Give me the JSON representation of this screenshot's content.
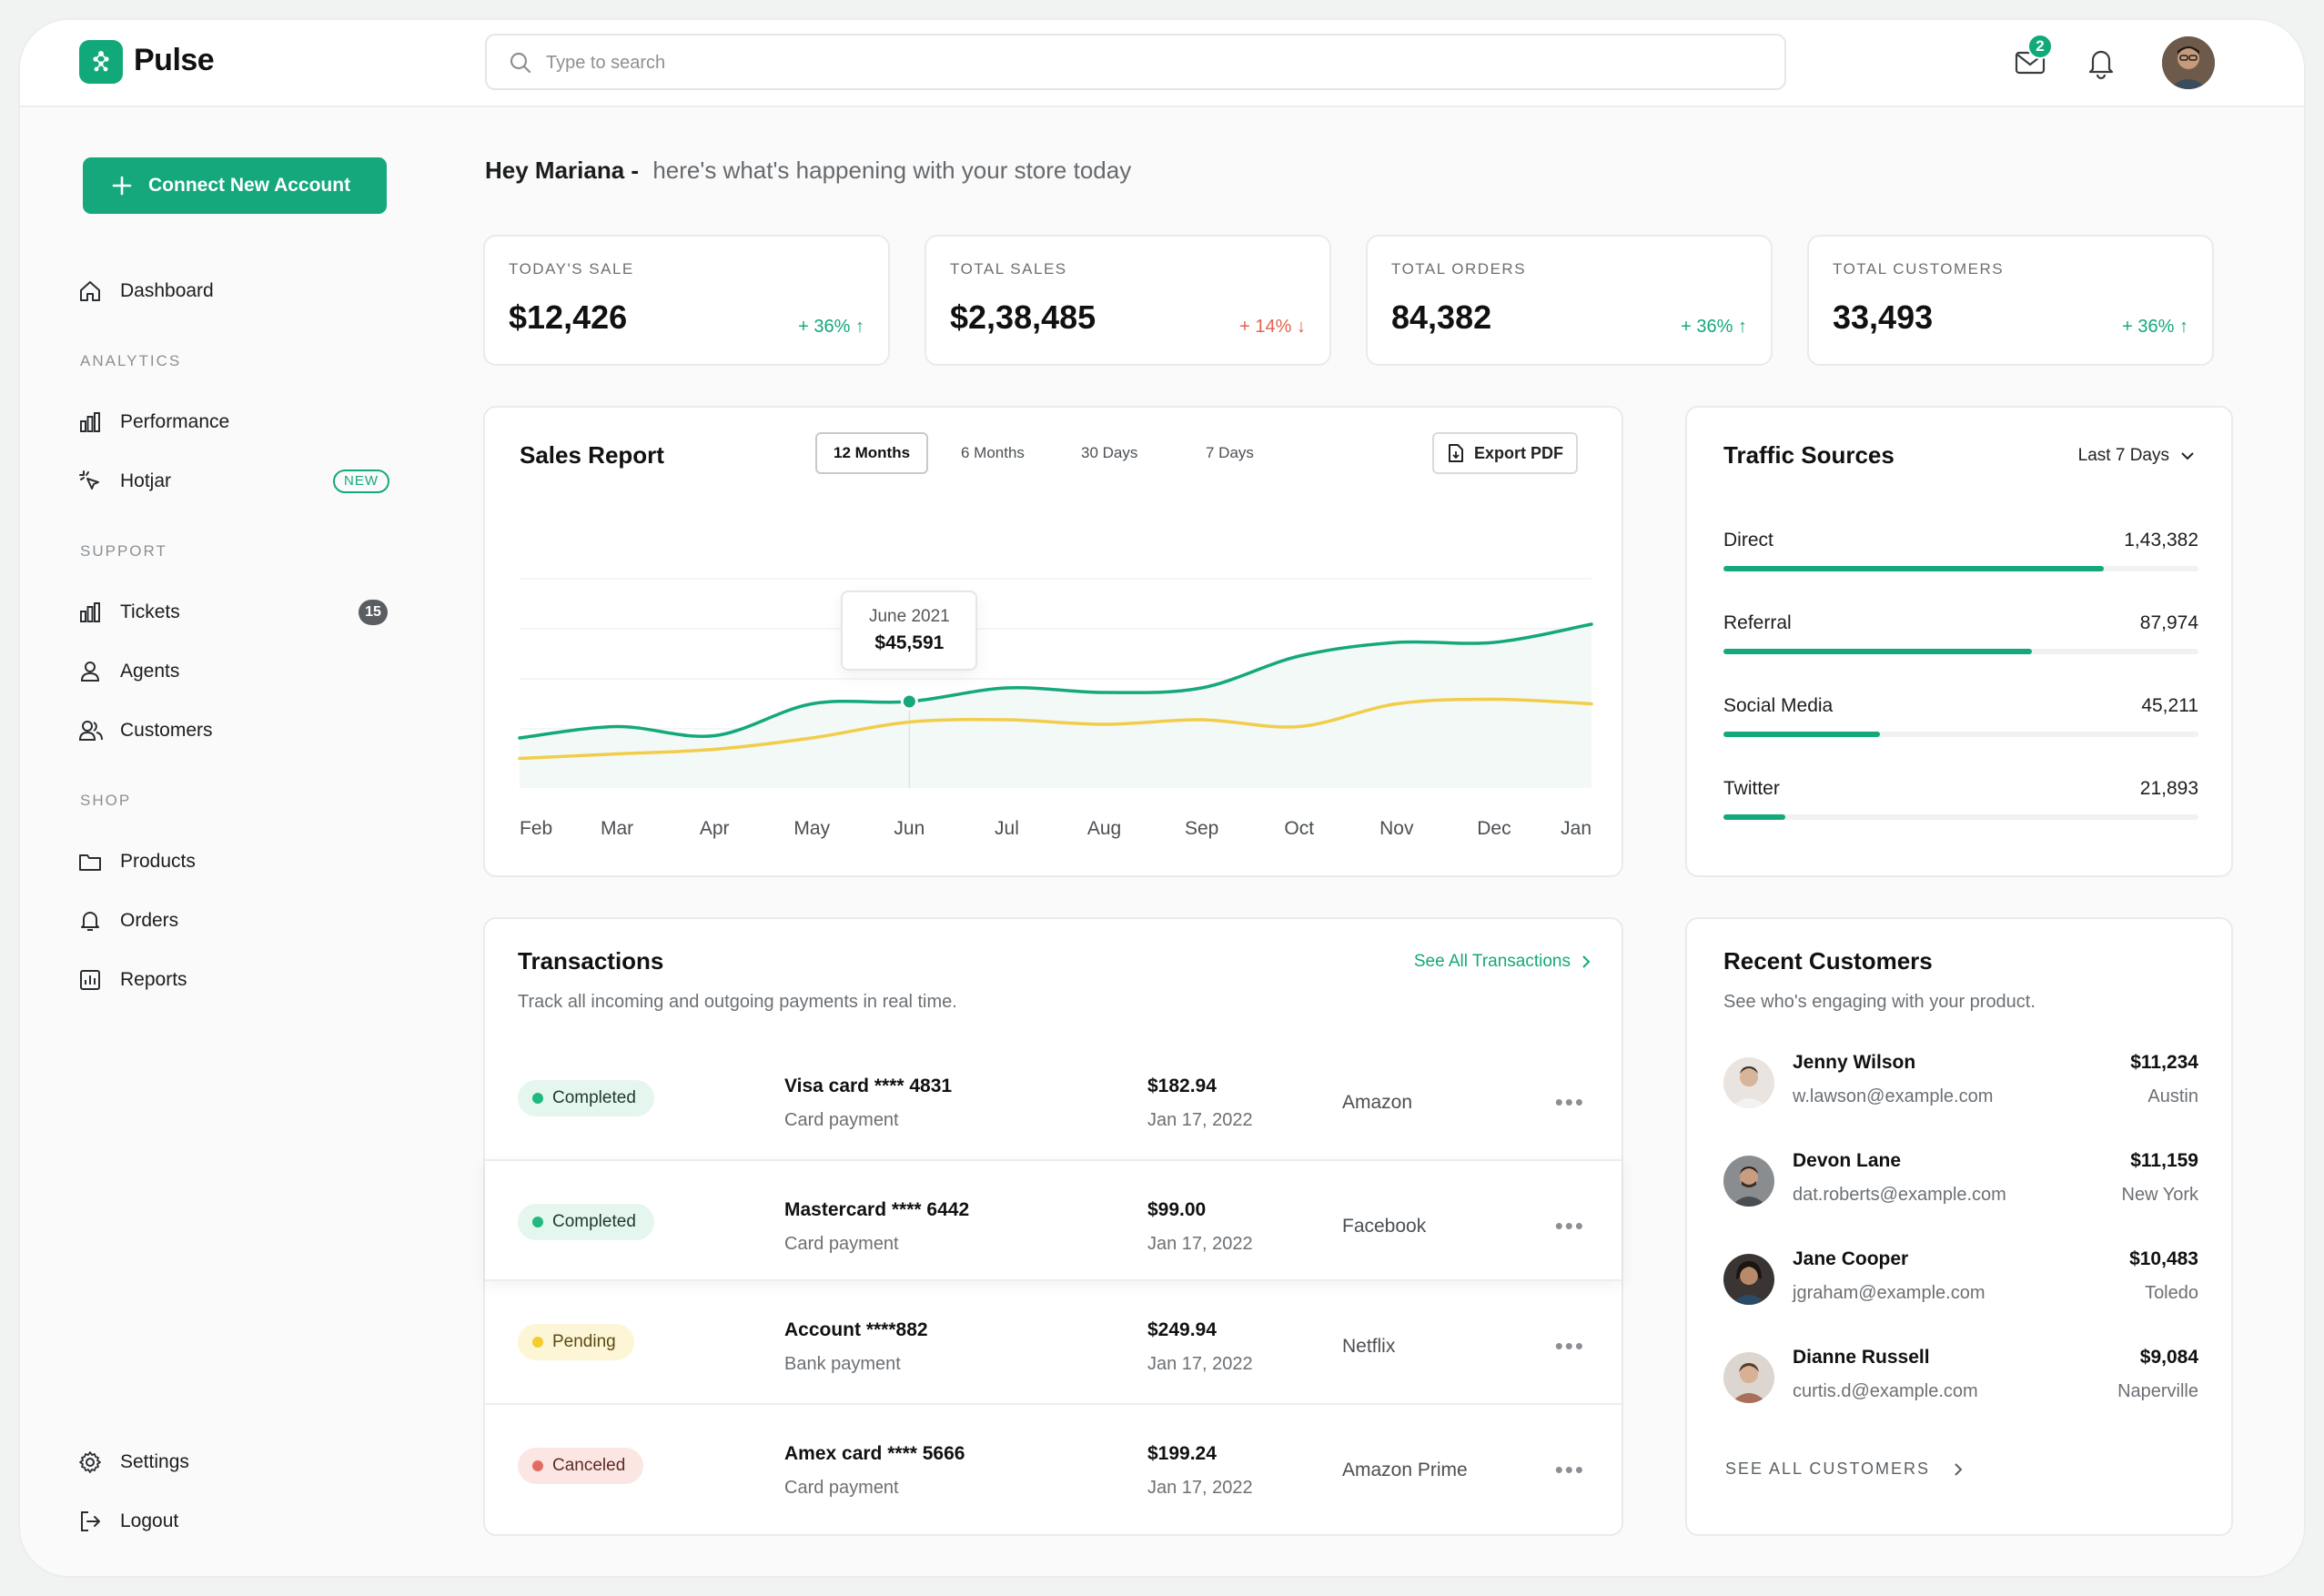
{
  "app": {
    "brand": "Pulse"
  },
  "search": {
    "placeholder": "Type to search"
  },
  "header": {
    "mail_badge": "2"
  },
  "sidebar": {
    "connect_label": "Connect New Account",
    "dashboard": "Dashboard",
    "sections": {
      "analytics": "ANALYTICS",
      "support": "SUPPORT",
      "shop": "SHOP"
    },
    "performance": "Performance",
    "hotjar": "Hotjar",
    "hotjar_badge": "NEW",
    "tickets": "Tickets",
    "tickets_count": "15",
    "agents": "Agents",
    "customers": "Customers",
    "products": "Products",
    "orders": "Orders",
    "reports": "Reports",
    "settings": "Settings",
    "logout": "Logout"
  },
  "greeting": {
    "name": "Hey Mariana -",
    "sub": "here's what's happening with your store today"
  },
  "stats": [
    {
      "label": "TODAY'S SALE",
      "value": "$12,426",
      "change": "+ 36% ↑",
      "trend": "up"
    },
    {
      "label": "TOTAL SALES",
      "value": "$2,38,485",
      "change": "+ 14% ↓",
      "trend": "down"
    },
    {
      "label": "TOTAL ORDERS",
      "value": "84,382",
      "change": "+ 36% ↑",
      "trend": "up"
    },
    {
      "label": "TOTAL CUSTOMERS",
      "value": "33,493",
      "change": "+ 36% ↑",
      "trend": "up"
    }
  ],
  "sales_report": {
    "title": "Sales Report",
    "tabs": [
      "12 Months",
      "6 Months",
      "30 Days",
      "7 Days"
    ],
    "active_tab": "12 Months",
    "export_label": "Export PDF",
    "tooltip": {
      "label": "June 2021",
      "value": "$45,591"
    }
  },
  "chart_data": {
    "type": "line",
    "title": "Sales Report",
    "categories": [
      "Feb",
      "Mar",
      "Apr",
      "May",
      "Jun",
      "Jul",
      "Aug",
      "Sep",
      "Oct",
      "Nov",
      "Dec",
      "Jan"
    ],
    "series": [
      {
        "color": "#14a87c",
        "values": [
          22,
          27,
          23,
          37,
          38,
          44,
          42,
          44,
          58,
          64,
          64,
          72
        ]
      },
      {
        "color": "#f2cd4a",
        "values": [
          13,
          15,
          17,
          22,
          29,
          30,
          28,
          30,
          27,
          37,
          39,
          37
        ]
      }
    ],
    "ylim": [
      0,
      100
    ],
    "highlight": {
      "category": "Jun",
      "label": "June 2021",
      "value": "$45,591"
    },
    "grid": true
  },
  "traffic": {
    "title": "Traffic Sources",
    "range": "Last 7 Days",
    "rows": [
      {
        "label": "Direct",
        "value": "1,43,382",
        "fraction": 0.8
      },
      {
        "label": "Referral",
        "value": "87,974",
        "fraction": 0.65
      },
      {
        "label": "Social Media",
        "value": "45,211",
        "fraction": 0.33
      },
      {
        "label": "Twitter",
        "value": "21,893",
        "fraction": 0.13
      }
    ]
  },
  "transactions": {
    "title": "Transactions",
    "subtitle": "Track all incoming and outgoing payments in real time.",
    "see_all": "See All Transactions",
    "rows": [
      {
        "status": "Completed",
        "status_kind": "completed",
        "name": "Visa card  **** 4831",
        "type": "Card payment",
        "amount": "$182.94",
        "date": "Jan 17, 2022",
        "merchant": "Amazon"
      },
      {
        "status": "Completed",
        "status_kind": "completed",
        "name": "Mastercard  **** 6442",
        "type": "Card payment",
        "amount": "$99.00",
        "date": "Jan 17, 2022",
        "merchant": "Facebook"
      },
      {
        "status": "Pending",
        "status_kind": "pending",
        "name": "Account  ****882",
        "type": "Bank payment",
        "amount": "$249.94",
        "date": "Jan 17, 2022",
        "merchant": "Netflix"
      },
      {
        "status": "Canceled",
        "status_kind": "canceled",
        "name": "Amex card  **** 5666",
        "type": "Card payment",
        "amount": "$199.24",
        "date": "Jan 17, 2022",
        "merchant": "Amazon Prime"
      }
    ]
  },
  "customers": {
    "title": "Recent Customers",
    "subtitle": "See who's engaging with your product.",
    "see_all": "SEE ALL CUSTOMERS",
    "rows": [
      {
        "name": "Jenny Wilson",
        "email": "w.lawson@example.com",
        "amount": "$11,234",
        "city": "Austin"
      },
      {
        "name": "Devon Lane",
        "email": "dat.roberts@example.com",
        "amount": "$11,159",
        "city": "New York"
      },
      {
        "name": "Jane Cooper",
        "email": "jgraham@example.com",
        "amount": "$10,483",
        "city": "Toledo"
      },
      {
        "name": "Dianne Russell",
        "email": "curtis.d@example.com",
        "amount": "$9,084",
        "city": "Naperville"
      }
    ]
  }
}
